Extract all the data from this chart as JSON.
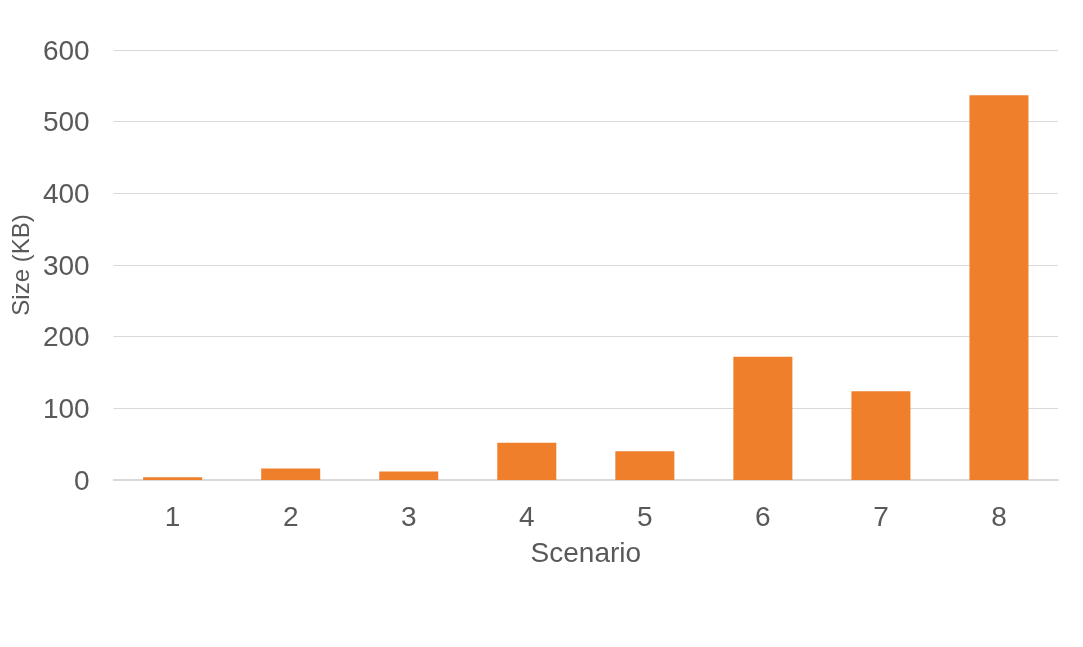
{
  "chart_data": {
    "type": "bar",
    "categories": [
      "1",
      "2",
      "3",
      "4",
      "5",
      "6",
      "7",
      "8"
    ],
    "values": [
      4,
      16,
      12,
      52,
      40,
      172,
      124,
      537
    ],
    "color": "#f07f2b",
    "xlabel": "Scenario",
    "ylabel": "Size (KB)",
    "ylim": [
      0,
      600
    ],
    "yticks": [
      0,
      100,
      200,
      300,
      400,
      500,
      600
    ],
    "grid": "y"
  }
}
